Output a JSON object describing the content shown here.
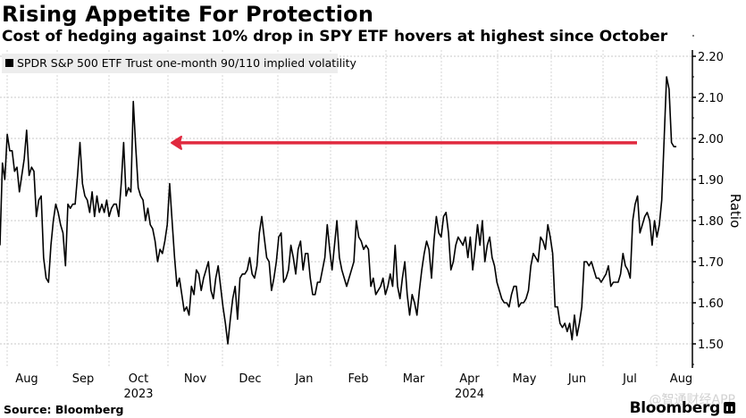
{
  "header": {
    "title": "Rising Appetite For Protection",
    "subtitle": "Cost of hedging against 10% drop in SPY ETF hovers at highest since October"
  },
  "footer": {
    "source": "Source: Bloomberg",
    "brand": "Bloomberg",
    "watermark": "@智通财经APP"
  },
  "annotation": {
    "type": "arrow",
    "direction": "left",
    "color": "#e0293f",
    "value": 1.985
  },
  "chart_data": {
    "type": "line",
    "title": "Rising Appetite For Protection",
    "subtitle": "Cost of hedging against 10% drop in SPY ETF hovers at highest since October",
    "xlabel": "",
    "ylabel": "Ratio",
    "ylim": [
      1.45,
      2.22
    ],
    "yticks": [
      1.5,
      1.6,
      1.7,
      1.8,
      1.9,
      2.0,
      2.1,
      2.2
    ],
    "ytick_labels": [
      "1.50",
      "1.60",
      "1.70",
      "1.80",
      "1.90",
      "2.00",
      "2.10",
      "2.20"
    ],
    "y_axis_side": "right",
    "grid": true,
    "legend": {
      "placement": "top-left",
      "entries": [
        "SPDR S&P 500 ETF Trust one-month 90/110 implied volatility"
      ]
    },
    "x_months": [
      "Aug",
      "Sep",
      "Oct",
      "Nov",
      "Dec",
      "Jan",
      "Feb",
      "Mar",
      "Apr",
      "May",
      "Jun",
      "Jul",
      "Aug"
    ],
    "x_years": [
      {
        "label": "2023",
        "under": "Oct"
      },
      {
        "label": "2024",
        "under": "Apr"
      }
    ],
    "series": [
      {
        "name": "SPDR S&P 500 ETF Trust one-month 90/110 implied volatility",
        "color": "#000000",
        "x_month_index_start": -0.15,
        "x_month_index_end": 12.45,
        "values": [
          1.74,
          1.94,
          1.9,
          2.01,
          1.97,
          1.97,
          1.92,
          1.93,
          1.87,
          1.91,
          1.95,
          2.02,
          1.91,
          1.93,
          1.92,
          1.81,
          1.85,
          1.86,
          1.71,
          1.66,
          1.65,
          1.74,
          1.8,
          1.84,
          1.82,
          1.79,
          1.77,
          1.69,
          1.84,
          1.83,
          1.84,
          1.84,
          1.91,
          1.99,
          1.89,
          1.86,
          1.85,
          1.82,
          1.87,
          1.81,
          1.86,
          1.82,
          1.84,
          1.82,
          1.85,
          1.81,
          1.83,
          1.84,
          1.84,
          1.81,
          1.89,
          1.99,
          1.86,
          1.88,
          1.87,
          2.09,
          1.98,
          1.88,
          1.86,
          1.85,
          1.8,
          1.83,
          1.79,
          1.78,
          1.75,
          1.7,
          1.73,
          1.72,
          1.75,
          1.79,
          1.89,
          1.8,
          1.71,
          1.64,
          1.66,
          1.62,
          1.58,
          1.59,
          1.57,
          1.64,
          1.62,
          1.68,
          1.67,
          1.63,
          1.66,
          1.68,
          1.7,
          1.63,
          1.61,
          1.66,
          1.69,
          1.64,
          1.59,
          1.55,
          1.5,
          1.56,
          1.61,
          1.64,
          1.56,
          1.66,
          1.67,
          1.67,
          1.68,
          1.71,
          1.67,
          1.66,
          1.69,
          1.77,
          1.81,
          1.76,
          1.71,
          1.7,
          1.63,
          1.66,
          1.7,
          1.76,
          1.77,
          1.65,
          1.66,
          1.68,
          1.74,
          1.71,
          1.67,
          1.73,
          1.75,
          1.68,
          1.72,
          1.72,
          1.66,
          1.62,
          1.62,
          1.65,
          1.65,
          1.68,
          1.71,
          1.79,
          1.73,
          1.68,
          1.74,
          1.8,
          1.71,
          1.68,
          1.66,
          1.64,
          1.66,
          1.68,
          1.7,
          1.8,
          1.76,
          1.75,
          1.73,
          1.74,
          1.73,
          1.64,
          1.66,
          1.62,
          1.63,
          1.64,
          1.66,
          1.62,
          1.64,
          1.67,
          1.64,
          1.74,
          1.64,
          1.61,
          1.66,
          1.7,
          1.62,
          1.57,
          1.62,
          1.6,
          1.57,
          1.63,
          1.68,
          1.72,
          1.75,
          1.73,
          1.66,
          1.75,
          1.81,
          1.77,
          1.76,
          1.81,
          1.82,
          1.77,
          1.68,
          1.7,
          1.74,
          1.76,
          1.75,
          1.74,
          1.76,
          1.71,
          1.76,
          1.68,
          1.73,
          1.79,
          1.74,
          1.8,
          1.7,
          1.74,
          1.76,
          1.71,
          1.69,
          1.65,
          1.63,
          1.61,
          1.6,
          1.6,
          1.59,
          1.62,
          1.64,
          1.64,
          1.59,
          1.6,
          1.6,
          1.61,
          1.63,
          1.69,
          1.72,
          1.71,
          1.7,
          1.76,
          1.75,
          1.73,
          1.79,
          1.76,
          1.72,
          1.59,
          1.59,
          1.55,
          1.54,
          1.55,
          1.53,
          1.55,
          1.51,
          1.57,
          1.52,
          1.55,
          1.59,
          1.7,
          1.7,
          1.69,
          1.7,
          1.68,
          1.66,
          1.66,
          1.65,
          1.66,
          1.67,
          1.69,
          1.64,
          1.65,
          1.65,
          1.65,
          1.67,
          1.72,
          1.69,
          1.68,
          1.66,
          1.8,
          1.84,
          1.86,
          1.77,
          1.79,
          1.81,
          1.82,
          1.8,
          1.74,
          1.8,
          1.76,
          1.79,
          1.85,
          2.0,
          2.15,
          2.12,
          1.99,
          1.98,
          1.98
        ]
      }
    ]
  }
}
